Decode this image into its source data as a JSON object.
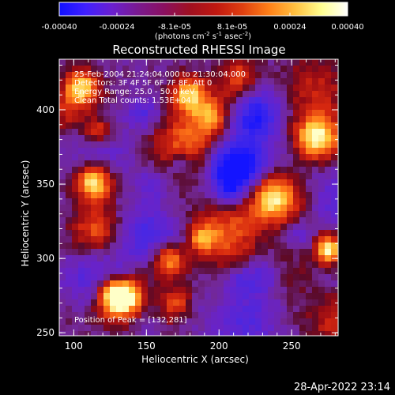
{
  "colorbar": {
    "ticks": [
      "-0.00040",
      "-0.00024",
      "-8.1e-05",
      "8.1e-05",
      "0.00024",
      "0.00040"
    ],
    "unit_main": "(photons cm",
    "unit_sup1": "-2",
    "unit_mid1": " s",
    "unit_sup2": "-1",
    "unit_mid2": " asec",
    "unit_sup3": "-2",
    "unit_end": ")",
    "stops": [
      "#1010ff",
      "#4020ff",
      "#6a1fd0",
      "#7a1a90",
      "#8a1060",
      "#a01020",
      "#c01810",
      "#e04010",
      "#ff8018",
      "#ffc040",
      "#ffff90",
      "#ffffff"
    ]
  },
  "chart_data": {
    "type": "heatmap",
    "title": "Reconstructed RHESSI Image",
    "xlabel": "Heliocentric X (arcsec)",
    "ylabel": "Heliocentric Y (arcsec)",
    "xlim": [
      90,
      282
    ],
    "ylim": [
      248,
      434
    ],
    "xticks": [
      "100",
      "150",
      "200",
      "250"
    ],
    "yticks": [
      "250",
      "300",
      "350",
      "400"
    ],
    "annotations": [
      "25-Feb-2004 21:24:04.000 to 21:30:04.000",
      "Detectors: 3F 4F 5F 6F 7F 8F, Att 0",
      "Energy Range: 25.0 - 50.0 keV",
      "Clean    Total counts: 1.53E+04"
    ],
    "peak_text": "Position of Peak = [132,281]",
    "peak": [
      132,
      281
    ]
  },
  "footer": {
    "date": "28-Apr-2022 23:14"
  }
}
